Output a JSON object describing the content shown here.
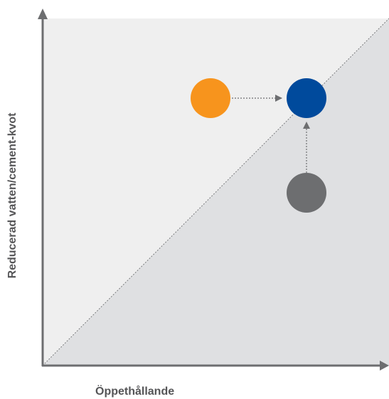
{
  "diagram": {
    "x_axis_label": "Öppethållande",
    "y_axis_label": "Reducerad vatten/cement-kvot",
    "colors": {
      "upper_region": "#efefef",
      "lower_region": "#dfe0e2",
      "axis": "#6d6e70",
      "diagonal": "#7a7b7d",
      "arrow": "#6d6e70",
      "orange_node": "#f7941d",
      "blue_node": "#004a9c",
      "grey_node": "#6d6e70"
    },
    "nodes": [
      {
        "name": "orange-circle",
        "color_key": "orange_node"
      },
      {
        "name": "blue-circle",
        "color_key": "blue_node"
      },
      {
        "name": "grey-circle",
        "color_key": "grey_node"
      }
    ],
    "arrows": [
      {
        "name": "arrow-orange-to-blue",
        "from": "orange-circle",
        "to": "blue-circle"
      },
      {
        "name": "arrow-grey-to-blue",
        "from": "grey-circle",
        "to": "blue-circle"
      }
    ]
  }
}
